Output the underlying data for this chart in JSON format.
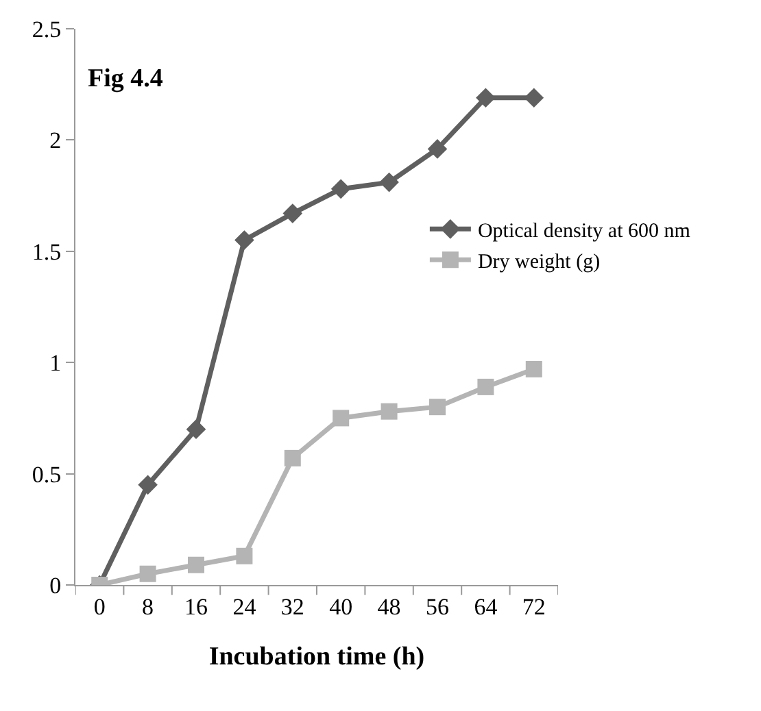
{
  "chart_data": {
    "type": "line",
    "xlabel": "Incubation time (h)",
    "annotations": [
      "Fig 4.4"
    ],
    "categories": [
      "0",
      "8",
      "16",
      "24",
      "32",
      "40",
      "48",
      "56",
      "64",
      "72"
    ],
    "series": [
      {
        "name": "Optical density at 600 nm",
        "color": "#5f5f5f",
        "marker": "diamond",
        "values": [
          0,
          0.45,
          0.7,
          1.55,
          1.67,
          1.78,
          1.81,
          1.96,
          2.19,
          2.19
        ]
      },
      {
        "name": "Dry weight (g)",
        "color": "#b4b4b4",
        "marker": "square",
        "values": [
          0,
          0.05,
          0.09,
          0.13,
          0.57,
          0.75,
          0.78,
          0.8,
          0.89,
          0.97
        ]
      }
    ],
    "ylim": [
      0,
      2.5
    ],
    "yticks": [
      0,
      0.5,
      1,
      1.5,
      2,
      2.5
    ],
    "legend": "right",
    "line_style": "solid"
  }
}
